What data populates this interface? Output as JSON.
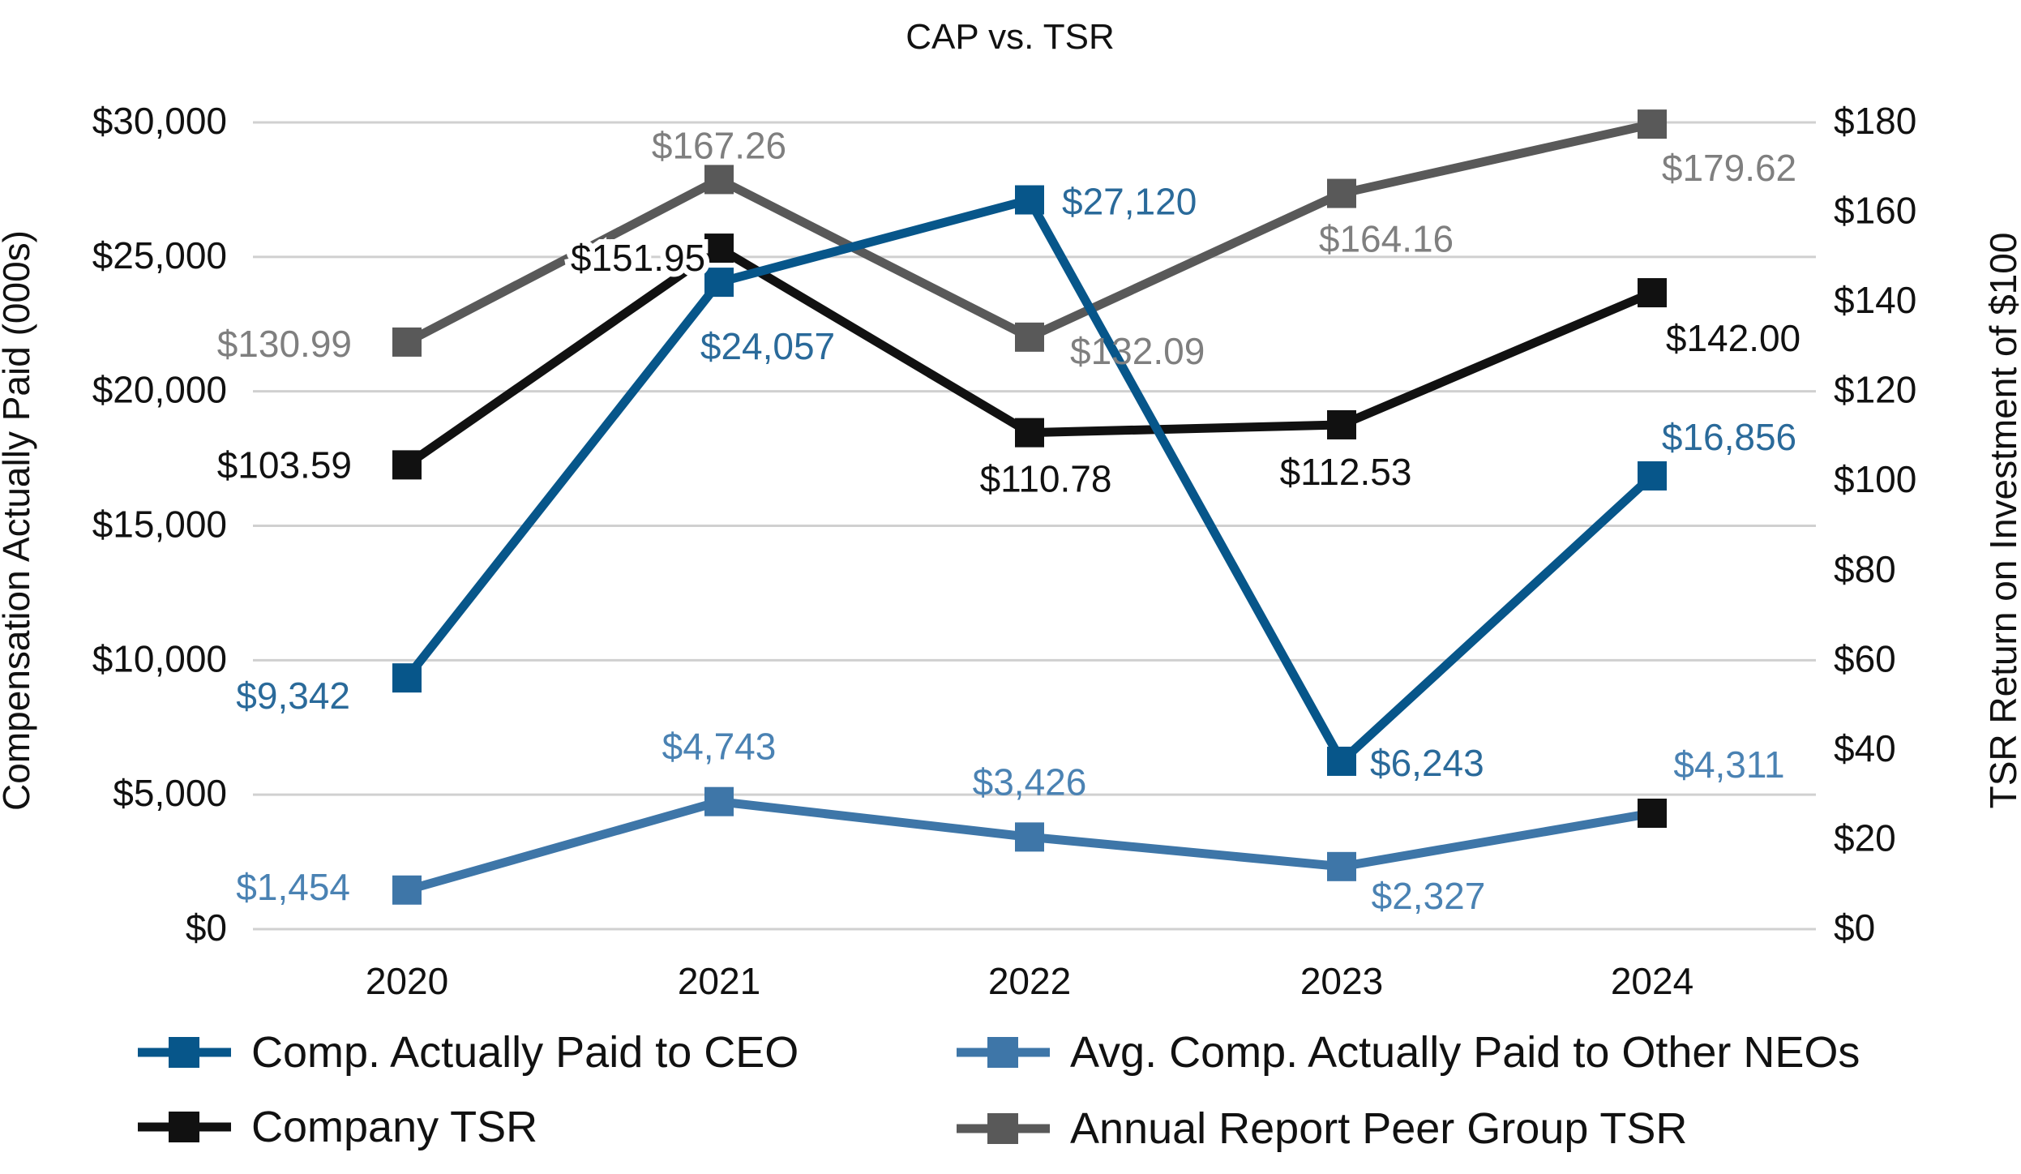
{
  "chart_data": {
    "type": "line",
    "title": "CAP vs. TSR",
    "categories": [
      "2020",
      "2021",
      "2022",
      "2023",
      "2024"
    ],
    "y_left": {
      "label": "Compensation Actually Paid (000s)",
      "min": 0,
      "max": 30000,
      "ticks": [
        {
          "value": 0,
          "label": "$0"
        },
        {
          "value": 5000,
          "label": "$5,000"
        },
        {
          "value": 10000,
          "label": "$10,000"
        },
        {
          "value": 15000,
          "label": "$15,000"
        },
        {
          "value": 20000,
          "label": "$20,000"
        },
        {
          "value": 25000,
          "label": "$25,000"
        },
        {
          "value": 30000,
          "label": "$30,000"
        }
      ]
    },
    "y_right": {
      "label": "TSR Return on Investment of $100",
      "min": 0,
      "max": 180,
      "ticks": [
        {
          "value": 0,
          "label": "$0"
        },
        {
          "value": 20,
          "label": "$20"
        },
        {
          "value": 40,
          "label": "$40"
        },
        {
          "value": 60,
          "label": "$60"
        },
        {
          "value": 80,
          "label": "$80"
        },
        {
          "value": 100,
          "label": "$100"
        },
        {
          "value": 120,
          "label": "$120"
        },
        {
          "value": 140,
          "label": "$140"
        },
        {
          "value": 160,
          "label": "$160"
        },
        {
          "value": 180,
          "label": "$180"
        }
      ]
    },
    "grid": true,
    "legend_position": "bottom",
    "series": [
      {
        "key": "peer-tsr",
        "name": "Annual Report Peer Group TSR",
        "axis": "right",
        "color": "#595959",
        "label_color": "#7f7f7f",
        "values": [
          130.99,
          167.26,
          132.09,
          164.16,
          179.62
        ],
        "labels": [
          "$130.99",
          "$167.26",
          "$132.09",
          "$164.16",
          "$179.62"
        ]
      },
      {
        "key": "company-tsr",
        "name": "Company TSR",
        "axis": "right",
        "color": "#111111",
        "label_color": "#111111",
        "values": [
          103.59,
          151.95,
          110.78,
          112.53,
          142.0
        ],
        "labels": [
          "$103.59",
          "$151.95",
          "$110.78",
          "$112.53",
          "$142.00"
        ]
      },
      {
        "key": "ceo-cap",
        "name": "Comp. Actually Paid to CEO",
        "axis": "left",
        "color": "#07568a",
        "label_color": "#2a6a9a",
        "values": [
          9342,
          24057,
          27120,
          6243,
          16856
        ],
        "labels": [
          "$9,342",
          "$24,057",
          "$27,120",
          "$6,243",
          "$16,856"
        ]
      },
      {
        "key": "neo-cap",
        "name": "Avg. Comp. Actually Paid to Other NEOs",
        "axis": "left",
        "color": "#3e76a8",
        "label_color": "#4a82b3",
        "values": [
          1454,
          4743,
          3426,
          2327,
          4311
        ],
        "labels": [
          "$1,454",
          "$4,743",
          "$3,426",
          "$2,327",
          "$4,311"
        ]
      }
    ],
    "legend": [
      {
        "key": "ceo-cap",
        "label": "Comp. Actually Paid to CEO"
      },
      {
        "key": "neo-cap",
        "label": "Avg. Comp. Actually Paid to Other NEOs"
      },
      {
        "key": "company-tsr",
        "label": "Company TSR"
      },
      {
        "key": "peer-tsr",
        "label": "Annual Report Peer Group TSR"
      }
    ]
  }
}
